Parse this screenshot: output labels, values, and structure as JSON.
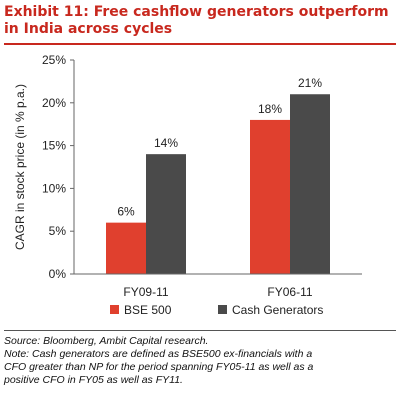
{
  "title": "Exhibit 11: Free cashflow generators outperform in India across cycles",
  "chart_data": {
    "type": "bar",
    "categories": [
      "FY09-11",
      "FY06-11"
    ],
    "series": [
      {
        "name": "BSE 500",
        "values": [
          6,
          18
        ],
        "labels": [
          "6%",
          "18%"
        ],
        "color": "#e0402e"
      },
      {
        "name": "Cash Generators",
        "values": [
          14,
          21
        ],
        "labels": [
          "14%",
          "21%"
        ],
        "color": "#4a4a4a"
      }
    ],
    "ylabel": "CAGR in stock price (in % p.a.)",
    "ylim": [
      0,
      25
    ],
    "yticks": [
      0,
      5,
      10,
      15,
      20,
      25
    ],
    "ytick_labels": [
      "0%",
      "5%",
      "10%",
      "15%",
      "20%",
      "25%"
    ],
    "legend_position": "bottom",
    "grid": false
  },
  "source": "Source: Bloomberg, Ambit Capital research.",
  "note_lines": [
    "Note: Cash generators are defined as BSE500 ex-financials with a",
    "CFO greater than NP for the period spanning FY05-11 as well as a",
    "positive CFO in FY05 as well as FY11."
  ]
}
